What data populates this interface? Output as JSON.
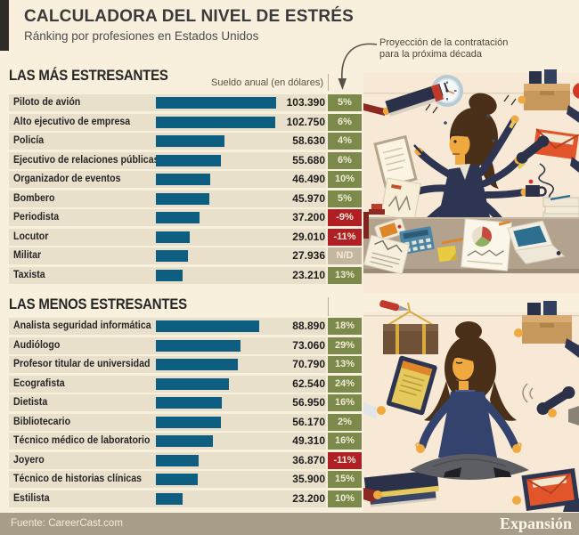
{
  "header": {
    "title": "CALCULADORA DEL NIVEL DE ESTRÉS",
    "subtitle": "Ránking por profesiones en Estados Unidos"
  },
  "annotation": {
    "line1": "Proyección de la contratación",
    "line2": "para la próxima década"
  },
  "sections": [
    {
      "title": "LAS MÁS ESTRESANTES",
      "column_header": "Sueldo anual (en dólares)",
      "rows": [
        {
          "label": "Piloto de avión",
          "salary": "103.390",
          "salary_value": 103390,
          "projection": "5%",
          "trend": "up"
        },
        {
          "label": "Alto ejecutivo de empresa",
          "salary": "102.750",
          "salary_value": 102750,
          "projection": "6%",
          "trend": "up"
        },
        {
          "label": "Policía",
          "salary": "58.630",
          "salary_value": 58630,
          "projection": "4%",
          "trend": "up"
        },
        {
          "label": "Ejecutivo de relaciones públicas",
          "salary": "55.680",
          "salary_value": 55680,
          "projection": "6%",
          "trend": "up"
        },
        {
          "label": "Organizador de eventos",
          "salary": "46.490",
          "salary_value": 46490,
          "projection": "10%",
          "trend": "up"
        },
        {
          "label": "Bombero",
          "salary": "45.970",
          "salary_value": 45970,
          "projection": "5%",
          "trend": "up"
        },
        {
          "label": "Periodista",
          "salary": "37.200",
          "salary_value": 37200,
          "projection": "-9%",
          "trend": "down"
        },
        {
          "label": "Locutor",
          "salary": "29.010",
          "salary_value": 29010,
          "projection": "-11%",
          "trend": "down"
        },
        {
          "label": "Militar",
          "salary": "27.936",
          "salary_value": 27936,
          "projection": "N/D",
          "trend": "nd"
        },
        {
          "label": "Taxista",
          "salary": "23.210",
          "salary_value": 23210,
          "projection": "13%",
          "trend": "up"
        }
      ]
    },
    {
      "title": "LAS MENOS ESTRESANTES",
      "column_header": "",
      "rows": [
        {
          "label": "Analista seguridad informática",
          "salary": "88.890",
          "salary_value": 88890,
          "projection": "18%",
          "trend": "up"
        },
        {
          "label": "Audiólogo",
          "salary": "73.060",
          "salary_value": 73060,
          "projection": "29%",
          "trend": "up"
        },
        {
          "label": "Profesor titular de universidad",
          "salary": "70.790",
          "salary_value": 70790,
          "projection": "13%",
          "trend": "up"
        },
        {
          "label": "Ecografista",
          "salary": "62.540",
          "salary_value": 62540,
          "projection": "24%",
          "trend": "up"
        },
        {
          "label": "Dietista",
          "salary": "56.950",
          "salary_value": 56950,
          "projection": "16%",
          "trend": "up"
        },
        {
          "label": "Bibliotecario",
          "salary": "56.170",
          "salary_value": 56170,
          "projection": "2%",
          "trend": "up"
        },
        {
          "label": "Técnico médico de laboratorio",
          "salary": "49.310",
          "salary_value": 49310,
          "projection": "16%",
          "trend": "up"
        },
        {
          "label": "Joyero",
          "salary": "36.870",
          "salary_value": 36870,
          "projection": "-11%",
          "trend": "down"
        },
        {
          "label": "Técnico de historias clínicas",
          "salary": "35.900",
          "salary_value": 35900,
          "projection": "15%",
          "trend": "up"
        },
        {
          "label": "Estilista",
          "salary": "23.200",
          "salary_value": 23200,
          "projection": "10%",
          "trend": "up"
        }
      ]
    }
  ],
  "footer": {
    "source": "Fuente: CareerCast.com",
    "brand": "Expansión"
  },
  "colors": {
    "bar": "#0d5e80",
    "up": "#7b894b",
    "down": "#b01f24",
    "nd": "#c3b89f",
    "row_bg": "#e9e0cb",
    "page_bg": "#f8efdd",
    "panel_bg": "#f7e9d5",
    "footer_bg": "#a89d88"
  },
  "chart_data": [
    {
      "type": "bar",
      "title": "LAS MÁS ESTRESANTES",
      "xlabel": "Sueldo anual (en dólares)",
      "categories": [
        "Piloto de avión",
        "Alto ejecutivo de empresa",
        "Policía",
        "Ejecutivo de relaciones públicas",
        "Organizador de eventos",
        "Bombero",
        "Periodista",
        "Locutor",
        "Militar",
        "Taxista"
      ],
      "values": [
        103390,
        102750,
        58630,
        55680,
        46490,
        45970,
        37200,
        29010,
        27936,
        23210
      ],
      "annotations": [
        "5%",
        "6%",
        "4%",
        "6%",
        "10%",
        "5%",
        "-9%",
        "-11%",
        "N/D",
        "13%"
      ],
      "annotation_meaning": "Proyección de la contratación para la próxima década",
      "xlim": [
        0,
        103390
      ],
      "orientation": "horizontal"
    },
    {
      "type": "bar",
      "title": "LAS MENOS ESTRESANTES",
      "xlabel": "Sueldo anual (en dólares)",
      "categories": [
        "Analista seguridad informática",
        "Audiólogo",
        "Profesor titular de universidad",
        "Ecografista",
        "Dietista",
        "Bibliotecario",
        "Técnico médico de laboratorio",
        "Joyero",
        "Técnico de historias clínicas",
        "Estilista"
      ],
      "values": [
        88890,
        73060,
        70790,
        62540,
        56950,
        56170,
        49310,
        36870,
        35900,
        23200
      ],
      "annotations": [
        "18%",
        "29%",
        "13%",
        "24%",
        "16%",
        "2%",
        "16%",
        "-11%",
        "15%",
        "10%"
      ],
      "annotation_meaning": "Proyección de la contratación para la próxima década",
      "xlim": [
        0,
        103390
      ],
      "orientation": "horizontal"
    }
  ]
}
